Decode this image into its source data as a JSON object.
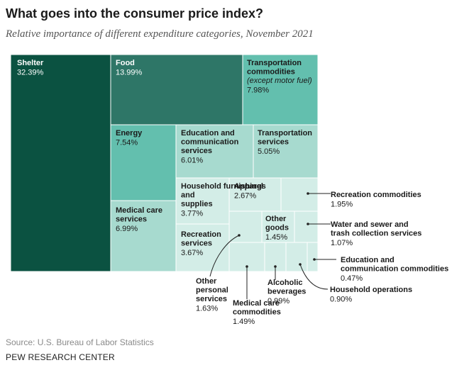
{
  "title": "What goes into the consumer price index?",
  "subtitle": "Relative importance of different expenditure categories, November 2021",
  "source": "Source: U.S. Bureau of Labor Statistics",
  "organization": "PEW RESEARCH CENTER",
  "chart_data": {
    "type": "treemap",
    "unit": "%",
    "colors": {
      "shelter": "#0b5241",
      "food": "#2e7667",
      "mid": "#63bfae",
      "light": "#a7dacf",
      "pale": "#d3ede7",
      "edge": "#ffffff"
    },
    "items": [
      {
        "label": "Shelter",
        "value": "32.39%",
        "tone": "shelter"
      },
      {
        "label": "Food",
        "value": "13.99%",
        "tone": "food"
      },
      {
        "label": "Transportation commodities",
        "note": "(except motor fuel)",
        "value": "7.98%",
        "tone": "mid"
      },
      {
        "label": "Energy",
        "value": "7.54%",
        "tone": "mid"
      },
      {
        "label": "Medical care services",
        "value": "6.99%",
        "tone": "light"
      },
      {
        "label": "Education and communication services",
        "value": "6.01%",
        "tone": "light"
      },
      {
        "label": "Transportation services",
        "value": "5.05%",
        "tone": "light"
      },
      {
        "label": "Household furnishings and supplies",
        "value": "3.77%",
        "tone": "pale"
      },
      {
        "label": "Recreation services",
        "value": "3.67%",
        "tone": "pale"
      },
      {
        "label": "Apparel",
        "value": "2.67%",
        "tone": "pale"
      },
      {
        "label": "Recreation commodities",
        "value": "1.95%",
        "tone": "pale"
      },
      {
        "label": "Other personal services",
        "value": "1.63%",
        "tone": "pale"
      },
      {
        "label": "Medical care commodities",
        "value": "1.49%",
        "tone": "pale"
      },
      {
        "label": "Other goods",
        "value": "1.45%",
        "tone": "pale"
      },
      {
        "label": "Water and sewer and trash collection services",
        "value": "1.07%",
        "tone": "pale"
      },
      {
        "label": "Alcoholic beverages",
        "value": "0.99%",
        "tone": "pale"
      },
      {
        "label": "Household operations",
        "value": "0.90%",
        "tone": "pale"
      },
      {
        "label": "Education and communication commodities",
        "value": "0.47%",
        "tone": "pale"
      }
    ]
  }
}
